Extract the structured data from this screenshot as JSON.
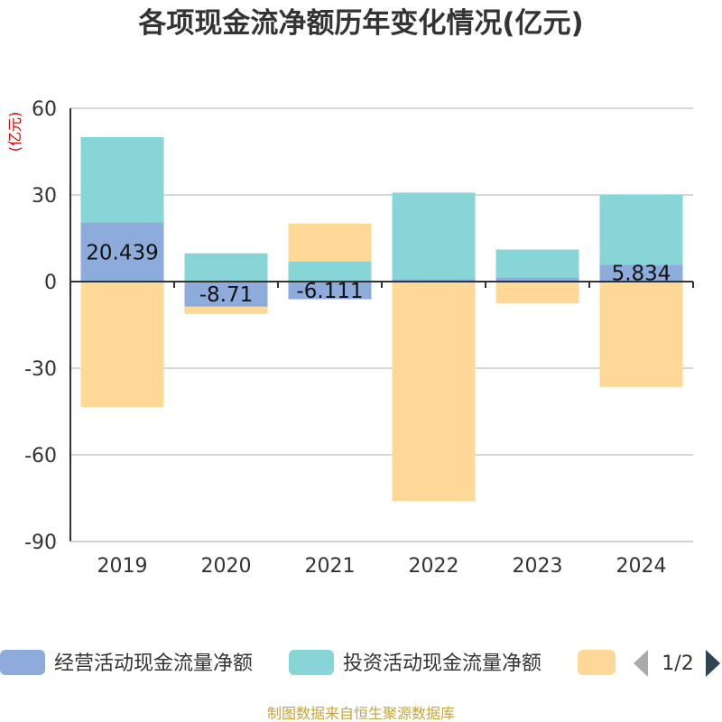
{
  "chart_data": {
    "type": "bar",
    "stacked": true,
    "title": "各项现金流净额历年变化情况(亿元)",
    "ylabel": "(亿元)",
    "ylim": [
      -90,
      60
    ],
    "yticks": [
      60,
      30,
      0,
      -30,
      -60,
      -90
    ],
    "categories": [
      "2019",
      "2020",
      "2021",
      "2022",
      "2023",
      "2024"
    ],
    "series": [
      {
        "name": "经营活动现金流量净额",
        "color": "#8eacdb",
        "values": [
          20.439,
          -8.71,
          -6.111,
          0.8,
          1.5,
          5.834
        ],
        "labels": [
          "20.439",
          "-8.71",
          "-6.111",
          "",
          "",
          "5.834"
        ]
      },
      {
        "name": "投资活动现金流量净额",
        "color": "#88d5d8",
        "values": [
          29.6,
          9.8,
          7.0,
          30.0,
          9.6,
          24.2
        ]
      },
      {
        "name": "",
        "color": "#fed897",
        "values": [
          -43.5,
          -2.5,
          13.1,
          -76.0,
          -7.6,
          -36.5
        ]
      }
    ],
    "legend": {
      "position": "bottom",
      "page": "1/2"
    }
  },
  "source": "制图数据来自恒生聚源数据库"
}
